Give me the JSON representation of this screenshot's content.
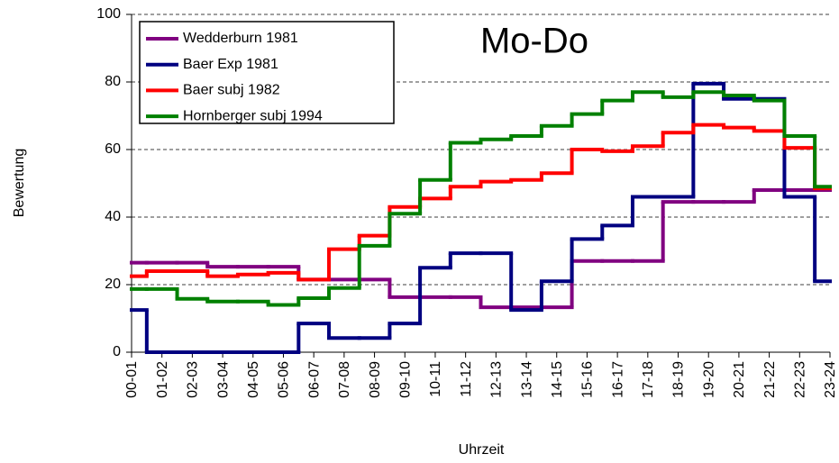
{
  "chart_data": {
    "type": "step",
    "title": "Mo-Do",
    "xlabel": "Uhrzeit",
    "ylabel": "Bewertung",
    "categories": [
      "00-01",
      "01-02",
      "02-03",
      "03-04",
      "04-05",
      "05-06",
      "06-07",
      "07-08",
      "08-09",
      "09-10",
      "10-11",
      "11-12",
      "12-13",
      "13-14",
      "14-15",
      "15-16",
      "16-17",
      "17-18",
      "18-19",
      "19-20",
      "20-21",
      "21-22",
      "22-23",
      "23-24"
    ],
    "ylim": [
      0,
      100
    ],
    "yticks": [
      0,
      20,
      40,
      60,
      80,
      100
    ],
    "grid": true,
    "legend": "upper left",
    "series": [
      {
        "name": "Wedderburn 1981",
        "color": "#800080",
        "values": [
          26.5,
          26.5,
          26.5,
          25.3,
          25.3,
          25.3,
          21.5,
          21.5,
          21.5,
          16.3,
          16.3,
          16.3,
          13.3,
          13.3,
          13.3,
          27,
          27,
          27,
          44.5,
          44.5,
          44.5,
          48,
          48,
          48
        ]
      },
      {
        "name": "Baer Exp 1981",
        "color": "#000080",
        "values": [
          12.5,
          0,
          0,
          0,
          0,
          0,
          8.5,
          4.2,
          4.2,
          8.5,
          25,
          29.3,
          29.3,
          12.5,
          21,
          33.5,
          37.5,
          46,
          46,
          79.5,
          75,
          75,
          46,
          21
        ]
      },
      {
        "name": "Baer subj 1982",
        "color": "#ff0000",
        "values": [
          22.5,
          24,
          24,
          22.5,
          23,
          23.5,
          21.5,
          30.5,
          34.5,
          43,
          45.5,
          49,
          50.5,
          51,
          53,
          60,
          59.5,
          61,
          65,
          67.3,
          66.5,
          65.5,
          60.5,
          48.5
        ]
      },
      {
        "name": "Hornberger subj 1994",
        "color": "#008000",
        "values": [
          18.7,
          18.7,
          15.8,
          15,
          15,
          14,
          16,
          19,
          31.5,
          41,
          51,
          62,
          63,
          64,
          67,
          70.5,
          74.5,
          77,
          75.5,
          77,
          76,
          74.5,
          64,
          49
        ]
      }
    ]
  }
}
